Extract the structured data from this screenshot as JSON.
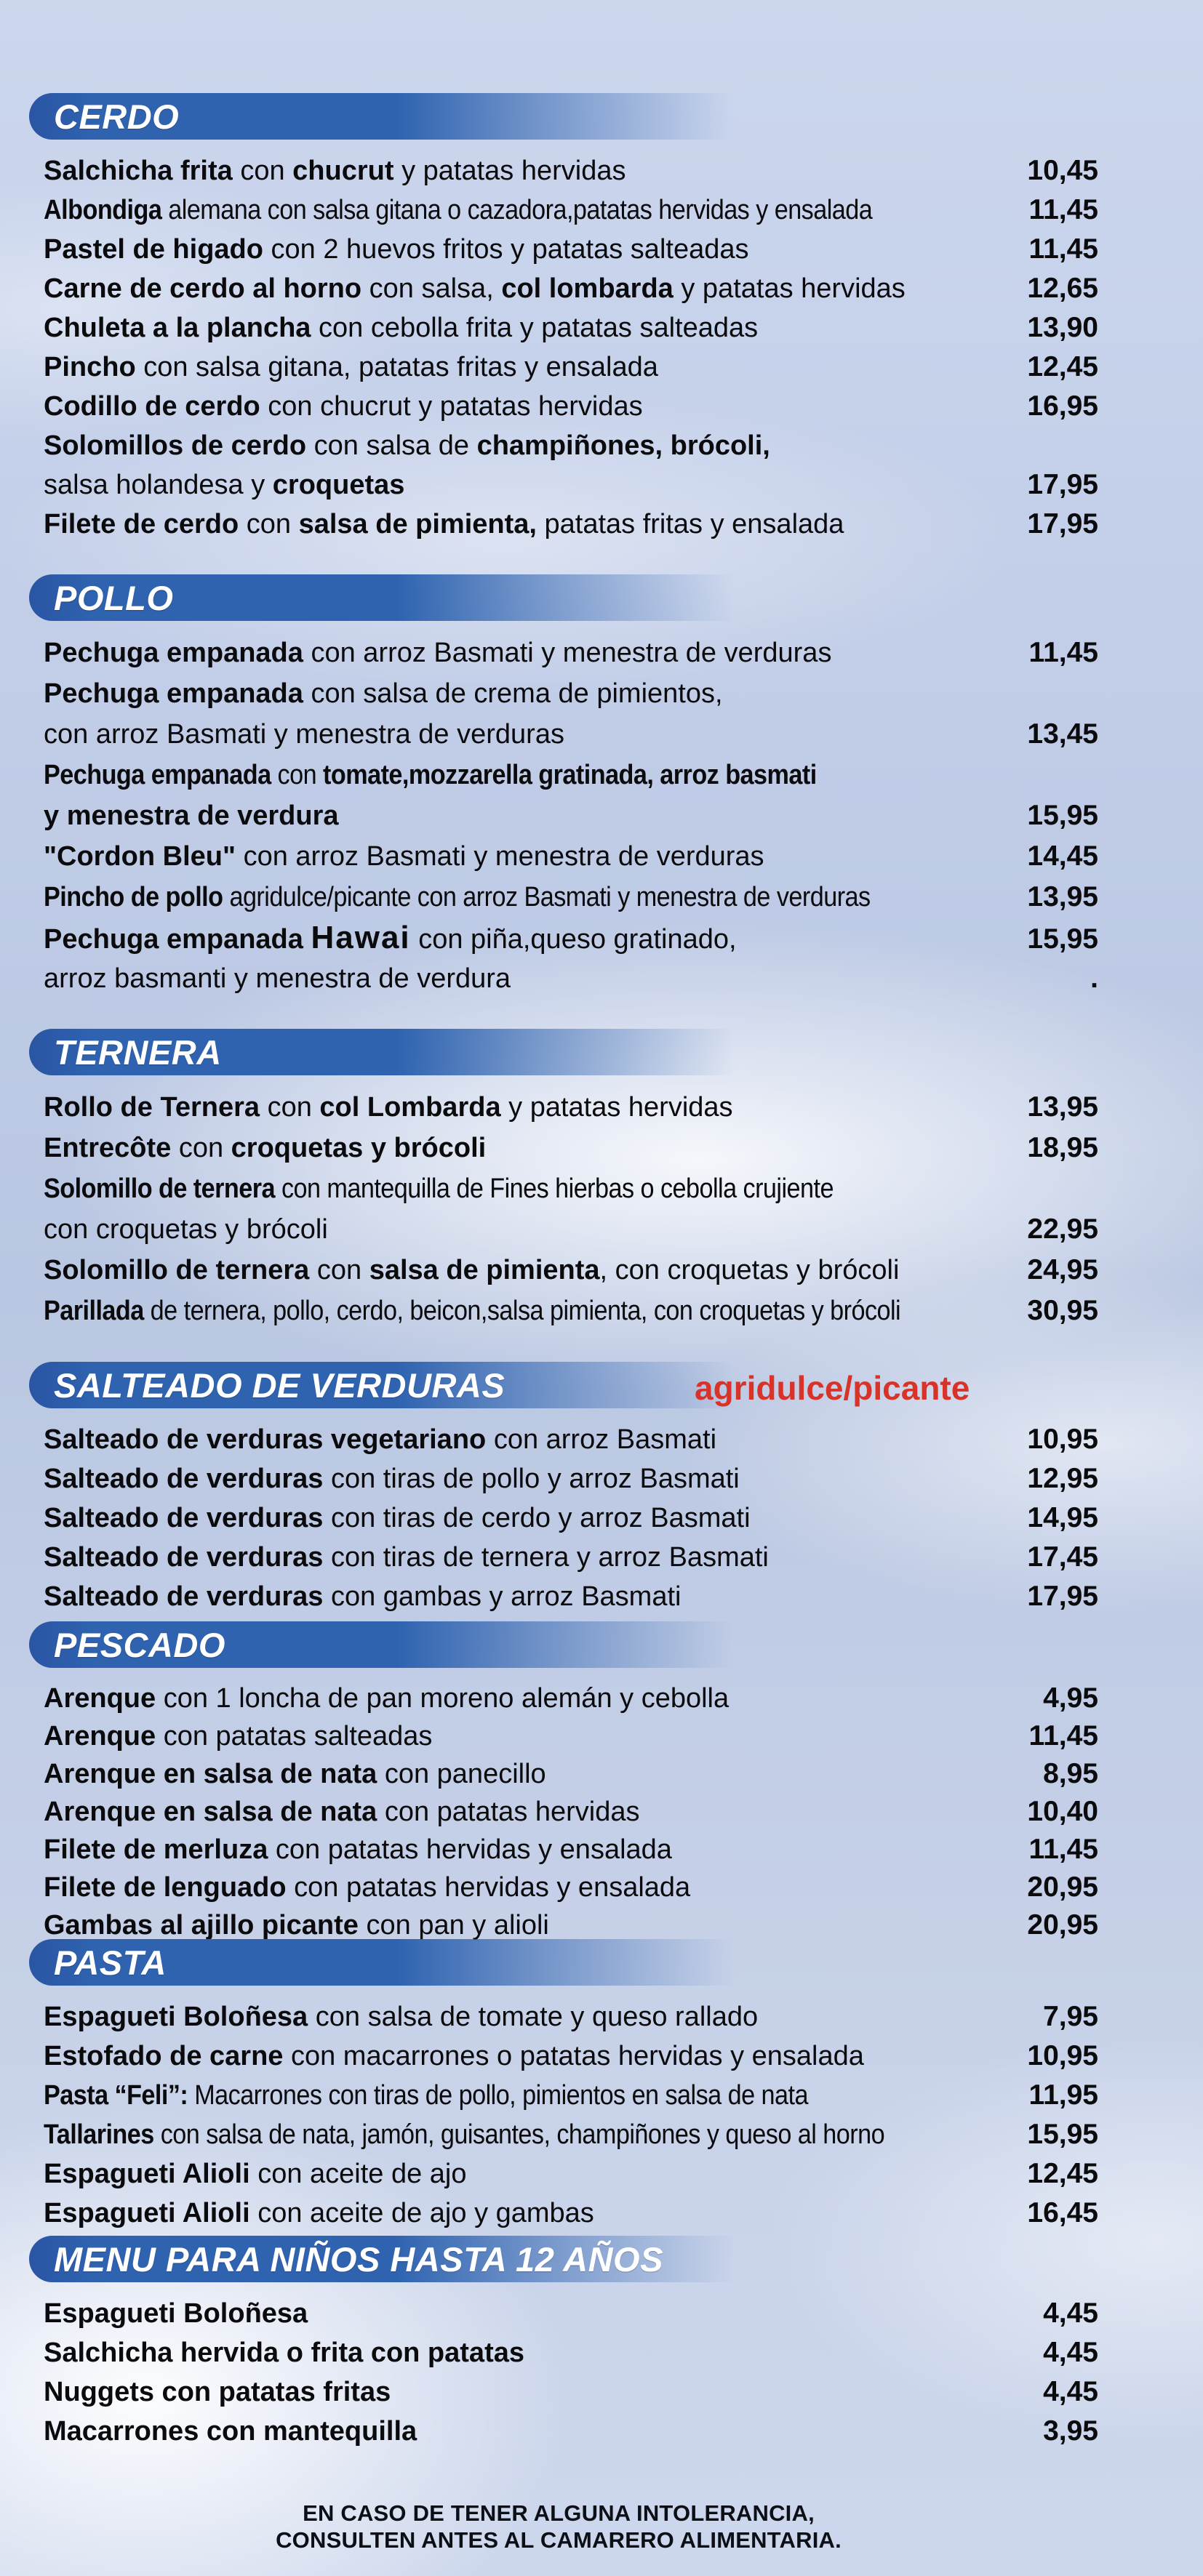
{
  "colors": {
    "banner_blue": "#2f63b0",
    "banner_blue_dark": "#2a55a3",
    "accent_red": "#d93229",
    "text": "#0b0b0e",
    "sky_background": "#c3cfe6",
    "header_text": "#ffffff"
  },
  "footer": {
    "line1": "EN CASO DE TENER ALGUNA INTOLERANCIA,",
    "line2": "CONSULTEN ANTES AL CAMARERO ALIMENTARIA."
  },
  "sections": [
    {
      "id": "cerdo",
      "title": "CERDO",
      "note": null,
      "items": [
        {
          "lines": [
            {
              "segments": [
                {
                  "t": "Salchicha frita ",
                  "b": true
                },
                {
                  "t": "con ",
                  "b": false
                },
                {
                  "t": "chucrut ",
                  "b": true
                },
                {
                  "t": "y patatas hervidas",
                  "b": false
                }
              ],
              "price": "10,45"
            }
          ]
        },
        {
          "lines": [
            {
              "narrow": true,
              "segments": [
                {
                  "t": "Albondiga ",
                  "b": true
                },
                {
                  "t": "alemana con salsa gitana o cazadora,patatas hervidas y ensalada",
                  "b": false
                }
              ],
              "price": "11,45"
            }
          ]
        },
        {
          "lines": [
            {
              "segments": [
                {
                  "t": "Pastel de higado ",
                  "b": true
                },
                {
                  "t": "con 2 huevos fritos y patatas salteadas",
                  "b": false
                }
              ],
              "price": "11,45"
            }
          ]
        },
        {
          "lines": [
            {
              "segments": [
                {
                  "t": "Carne de cerdo al horno ",
                  "b": true
                },
                {
                  "t": "con salsa, ",
                  "b": false
                },
                {
                  "t": "col lombarda ",
                  "b": true
                },
                {
                  "t": "y patatas hervidas",
                  "b": false
                }
              ],
              "price": "12,65"
            }
          ]
        },
        {
          "lines": [
            {
              "segments": [
                {
                  "t": "Chuleta a la plancha ",
                  "b": true
                },
                {
                  "t": "con cebolla frita y patatas salteadas",
                  "b": false
                }
              ],
              "price": "13,90"
            }
          ]
        },
        {
          "lines": [
            {
              "segments": [
                {
                  "t": "Pincho ",
                  "b": true
                },
                {
                  "t": "con salsa gitana, patatas fritas y ensalada",
                  "b": false
                }
              ],
              "price": "12,45"
            }
          ]
        },
        {
          "lines": [
            {
              "segments": [
                {
                  "t": "Codillo de cerdo ",
                  "b": true
                },
                {
                  "t": "con chucrut y patatas hervidas",
                  "b": false
                }
              ],
              "price": "16,95"
            }
          ]
        },
        {
          "lines": [
            {
              "segments": [
                {
                  "t": "Solomillos de cerdo ",
                  "b": true
                },
                {
                  "t": "con salsa de ",
                  "b": false
                },
                {
                  "t": "champiñones, brócoli,",
                  "b": true
                }
              ]
            },
            {
              "segments": [
                {
                  "t": "salsa holandesa y ",
                  "b": false
                },
                {
                  "t": "croquetas",
                  "b": true
                }
              ],
              "price": "17,95"
            }
          ]
        },
        {
          "lines": [
            {
              "segments": [
                {
                  "t": "Filete de cerdo ",
                  "b": true
                },
                {
                  "t": "con ",
                  "b": false
                },
                {
                  "t": "salsa de pimienta, ",
                  "b": true
                },
                {
                  "t": "patatas fritas y ensalada",
                  "b": false
                }
              ],
              "price": "17,95"
            }
          ]
        }
      ]
    },
    {
      "id": "pollo",
      "title": "POLLO",
      "note": null,
      "items": [
        {
          "lines": [
            {
              "segments": [
                {
                  "t": "Pechuga empanada ",
                  "b": true
                },
                {
                  "t": "con arroz Basmati y menestra de verduras",
                  "b": false
                }
              ],
              "price": "11,45"
            }
          ]
        },
        {
          "lines": [
            {
              "segments": [
                {
                  "t": "Pechuga empanada ",
                  "b": true
                },
                {
                  "t": "con salsa de crema de pimientos,",
                  "b": false
                }
              ]
            },
            {
              "segments": [
                {
                  "t": "con arroz Basmati y menestra de verduras",
                  "b": false
                }
              ],
              "price": "13,45"
            }
          ]
        },
        {
          "lines": [
            {
              "narrow": true,
              "segments": [
                {
                  "t": "Pechuga empanada ",
                  "b": true
                },
                {
                  "t": "con ",
                  "b": false
                },
                {
                  "t": "tomate,mozzarella gratinada, arroz basmati",
                  "b": true
                }
              ]
            },
            {
              "segments": [
                {
                  "t": "y menestra de verdura",
                  "b": true
                }
              ],
              "price": "15,95"
            }
          ]
        },
        {
          "lines": [
            {
              "segments": [
                {
                  "t": "\"Cordon Bleu\" ",
                  "b": true
                },
                {
                  "t": "con arroz Basmati y menestra de verduras",
                  "b": false
                }
              ],
              "price": "14,45"
            }
          ]
        },
        {
          "lines": [
            {
              "narrow": true,
              "segments": [
                {
                  "t": "Pincho de pollo ",
                  "b": true
                },
                {
                  "t": "agridulce/picante con arroz Basmati y menestra de verduras",
                  "b": false
                }
              ],
              "price": "13,95"
            }
          ]
        },
        {
          "lines": [
            {
              "segments": [
                {
                  "t": "Pechuga empanada ",
                  "b": true
                },
                {
                  "t": "Hawai",
                  "style": "seg-hawai"
                },
                {
                  "t": " con piña,queso gratinado,",
                  "b": false
                }
              ],
              "price": "15,95"
            },
            {
              "segments": [
                {
                  "t": "arroz basmanti y menestra de verdura",
                  "b": false
                }
              ],
              "price": "."
            }
          ]
        }
      ]
    },
    {
      "id": "ternera",
      "title": "TERNERA",
      "note": null,
      "items": [
        {
          "lines": [
            {
              "segments": [
                {
                  "t": "Rollo de Ternera ",
                  "b": true
                },
                {
                  "t": "con ",
                  "b": false
                },
                {
                  "t": "col Lombarda ",
                  "b": true
                },
                {
                  "t": "y patatas hervidas",
                  "b": false
                }
              ],
              "price": "13,95"
            }
          ]
        },
        {
          "lines": [
            {
              "segments": [
                {
                  "t": "Entrecôte ",
                  "b": true
                },
                {
                  "t": "con ",
                  "b": false
                },
                {
                  "t": "croquetas y brócoli",
                  "b": true
                }
              ],
              "price": "18,95"
            }
          ]
        },
        {
          "lines": [
            {
              "narrow": true,
              "segments": [
                {
                  "t": "Solomillo de ternera ",
                  "b": true
                },
                {
                  "t": "con mantequilla de Fines hierbas o cebolla crujiente",
                  "b": false
                }
              ]
            },
            {
              "segments": [
                {
                  "t": "con croquetas y brócoli",
                  "b": false
                }
              ],
              "price": "22,95"
            }
          ]
        },
        {
          "lines": [
            {
              "segments": [
                {
                  "t": "Solomillo de ternera ",
                  "b": true
                },
                {
                  "t": "con ",
                  "b": false
                },
                {
                  "t": "salsa de pimienta",
                  "b": true
                },
                {
                  "t": ", con croquetas y brócoli",
                  "b": false
                }
              ],
              "price": "24,95"
            }
          ]
        },
        {
          "lines": [
            {
              "narrow": true,
              "segments": [
                {
                  "t": "Parillada ",
                  "b": true
                },
                {
                  "t": "de ternera, pollo, cerdo, beicon,salsa pimienta, con croquetas y brócoli",
                  "b": false
                }
              ],
              "price": "30,95"
            }
          ]
        }
      ]
    },
    {
      "id": "salteado",
      "title": "SALTEADO DE VERDURAS",
      "note": "agridulce/picante",
      "items": [
        {
          "lines": [
            {
              "segments": [
                {
                  "t": "Salteado de verduras vegetariano ",
                  "b": true
                },
                {
                  "t": "con arroz Basmati",
                  "b": false
                }
              ],
              "price": "10,95"
            }
          ]
        },
        {
          "lines": [
            {
              "segments": [
                {
                  "t": "Salteado de verduras ",
                  "b": true
                },
                {
                  "t": "con tiras de pollo y arroz Basmati",
                  "b": false
                }
              ],
              "price": "12,95"
            }
          ]
        },
        {
          "lines": [
            {
              "segments": [
                {
                  "t": "Salteado de verduras ",
                  "b": true
                },
                {
                  "t": "con tiras de cerdo y arroz Basmati",
                  "b": false
                }
              ],
              "price": "14,95"
            }
          ]
        },
        {
          "lines": [
            {
              "segments": [
                {
                  "t": "Salteado de verduras ",
                  "b": true
                },
                {
                  "t": "con tiras de ternera y arroz Basmati",
                  "b": false
                }
              ],
              "price": "17,45"
            }
          ]
        },
        {
          "lines": [
            {
              "segments": [
                {
                  "t": "Salteado de verduras ",
                  "b": true
                },
                {
                  "t": "con gambas y arroz Basmati",
                  "b": false
                }
              ],
              "price": "17,95"
            }
          ]
        }
      ]
    },
    {
      "id": "pescado",
      "title": "PESCADO",
      "note": null,
      "items": [
        {
          "lines": [
            {
              "segments": [
                {
                  "t": "Arenque ",
                  "b": true
                },
                {
                  "t": "con 1 loncha de pan moreno alemán y cebolla",
                  "b": false
                }
              ],
              "price": "4,95"
            }
          ]
        },
        {
          "lines": [
            {
              "segments": [
                {
                  "t": "Arenque ",
                  "b": true
                },
                {
                  "t": "con patatas salteadas",
                  "b": false
                }
              ],
              "price": "11,45"
            }
          ]
        },
        {
          "lines": [
            {
              "segments": [
                {
                  "t": "Arenque en salsa de nata ",
                  "b": true
                },
                {
                  "t": "con panecillo",
                  "b": false
                }
              ],
              "price": "8,95"
            }
          ]
        },
        {
          "lines": [
            {
              "segments": [
                {
                  "t": "Arenque en salsa de nata ",
                  "b": true
                },
                {
                  "t": "con patatas hervidas",
                  "b": false
                }
              ],
              "price": "10,40"
            }
          ]
        },
        {
          "lines": [
            {
              "segments": [
                {
                  "t": "Filete de merluza ",
                  "b": true
                },
                {
                  "t": "con patatas hervidas y ensalada",
                  "b": false
                }
              ],
              "price": "11,45"
            }
          ]
        },
        {
          "lines": [
            {
              "segments": [
                {
                  "t": "Filete de lenguado ",
                  "b": true
                },
                {
                  "t": "con patatas hervidas y ensalada",
                  "b": false
                }
              ],
              "price": "20,95"
            }
          ]
        },
        {
          "lines": [
            {
              "segments": [
                {
                  "t": "Gambas al ajillo picante ",
                  "b": true
                },
                {
                  "t": "con pan y alioli",
                  "b": false
                }
              ],
              "price": "20,95"
            }
          ]
        }
      ]
    },
    {
      "id": "pasta",
      "title": "PASTA",
      "note": null,
      "items": [
        {
          "lines": [
            {
              "segments": [
                {
                  "t": "Espagueti Boloñesa ",
                  "b": true
                },
                {
                  "t": "con salsa de tomate y queso rallado",
                  "b": false
                }
              ],
              "price": "7,95"
            }
          ]
        },
        {
          "lines": [
            {
              "segments": [
                {
                  "t": "Estofado de carne ",
                  "b": true
                },
                {
                  "t": "con macarrones o patatas hervidas y ensalada",
                  "b": false
                }
              ],
              "price": "10,95"
            }
          ]
        },
        {
          "lines": [
            {
              "narrow": true,
              "segments": [
                {
                  "t": "Pasta “Feli”: ",
                  "b": true
                },
                {
                  "t": "Macarrones con tiras de pollo, pimientos en salsa de nata",
                  "b": false
                }
              ],
              "price": "11,95"
            }
          ]
        },
        {
          "lines": [
            {
              "narrow": true,
              "segments": [
                {
                  "t": "Tallarines ",
                  "b": true
                },
                {
                  "t": "con salsa de nata, jamón, guisantes, champiñones y queso al horno",
                  "b": false
                }
              ],
              "price": "15,95"
            }
          ]
        },
        {
          "lines": [
            {
              "segments": [
                {
                  "t": "Espagueti Alioli ",
                  "b": true
                },
                {
                  "t": "con aceite de ajo",
                  "b": false
                }
              ],
              "price": "12,45"
            }
          ]
        },
        {
          "lines": [
            {
              "segments": [
                {
                  "t": "Espagueti Alioli ",
                  "b": true
                },
                {
                  "t": "con aceite de ajo y gambas",
                  "b": false
                }
              ],
              "price": "16,45"
            }
          ]
        }
      ]
    },
    {
      "id": "ninos",
      "title": "MENU PARA NIÑOS HASTA 12 AÑOS",
      "note": null,
      "items": [
        {
          "lines": [
            {
              "segments": [
                {
                  "t": "Espagueti Boloñesa",
                  "b": true
                }
              ],
              "price": "4,45"
            }
          ]
        },
        {
          "lines": [
            {
              "segments": [
                {
                  "t": "Salchicha hervida o frita con patatas",
                  "b": true
                }
              ],
              "price": "4,45"
            }
          ]
        },
        {
          "lines": [
            {
              "segments": [
                {
                  "t": "Nuggets con patatas fritas",
                  "b": true
                }
              ],
              "price": "4,45"
            }
          ]
        },
        {
          "lines": [
            {
              "segments": [
                {
                  "t": "Macarrones con mantequilla",
                  "b": true
                }
              ],
              "price": "3,95"
            }
          ]
        }
      ]
    }
  ]
}
